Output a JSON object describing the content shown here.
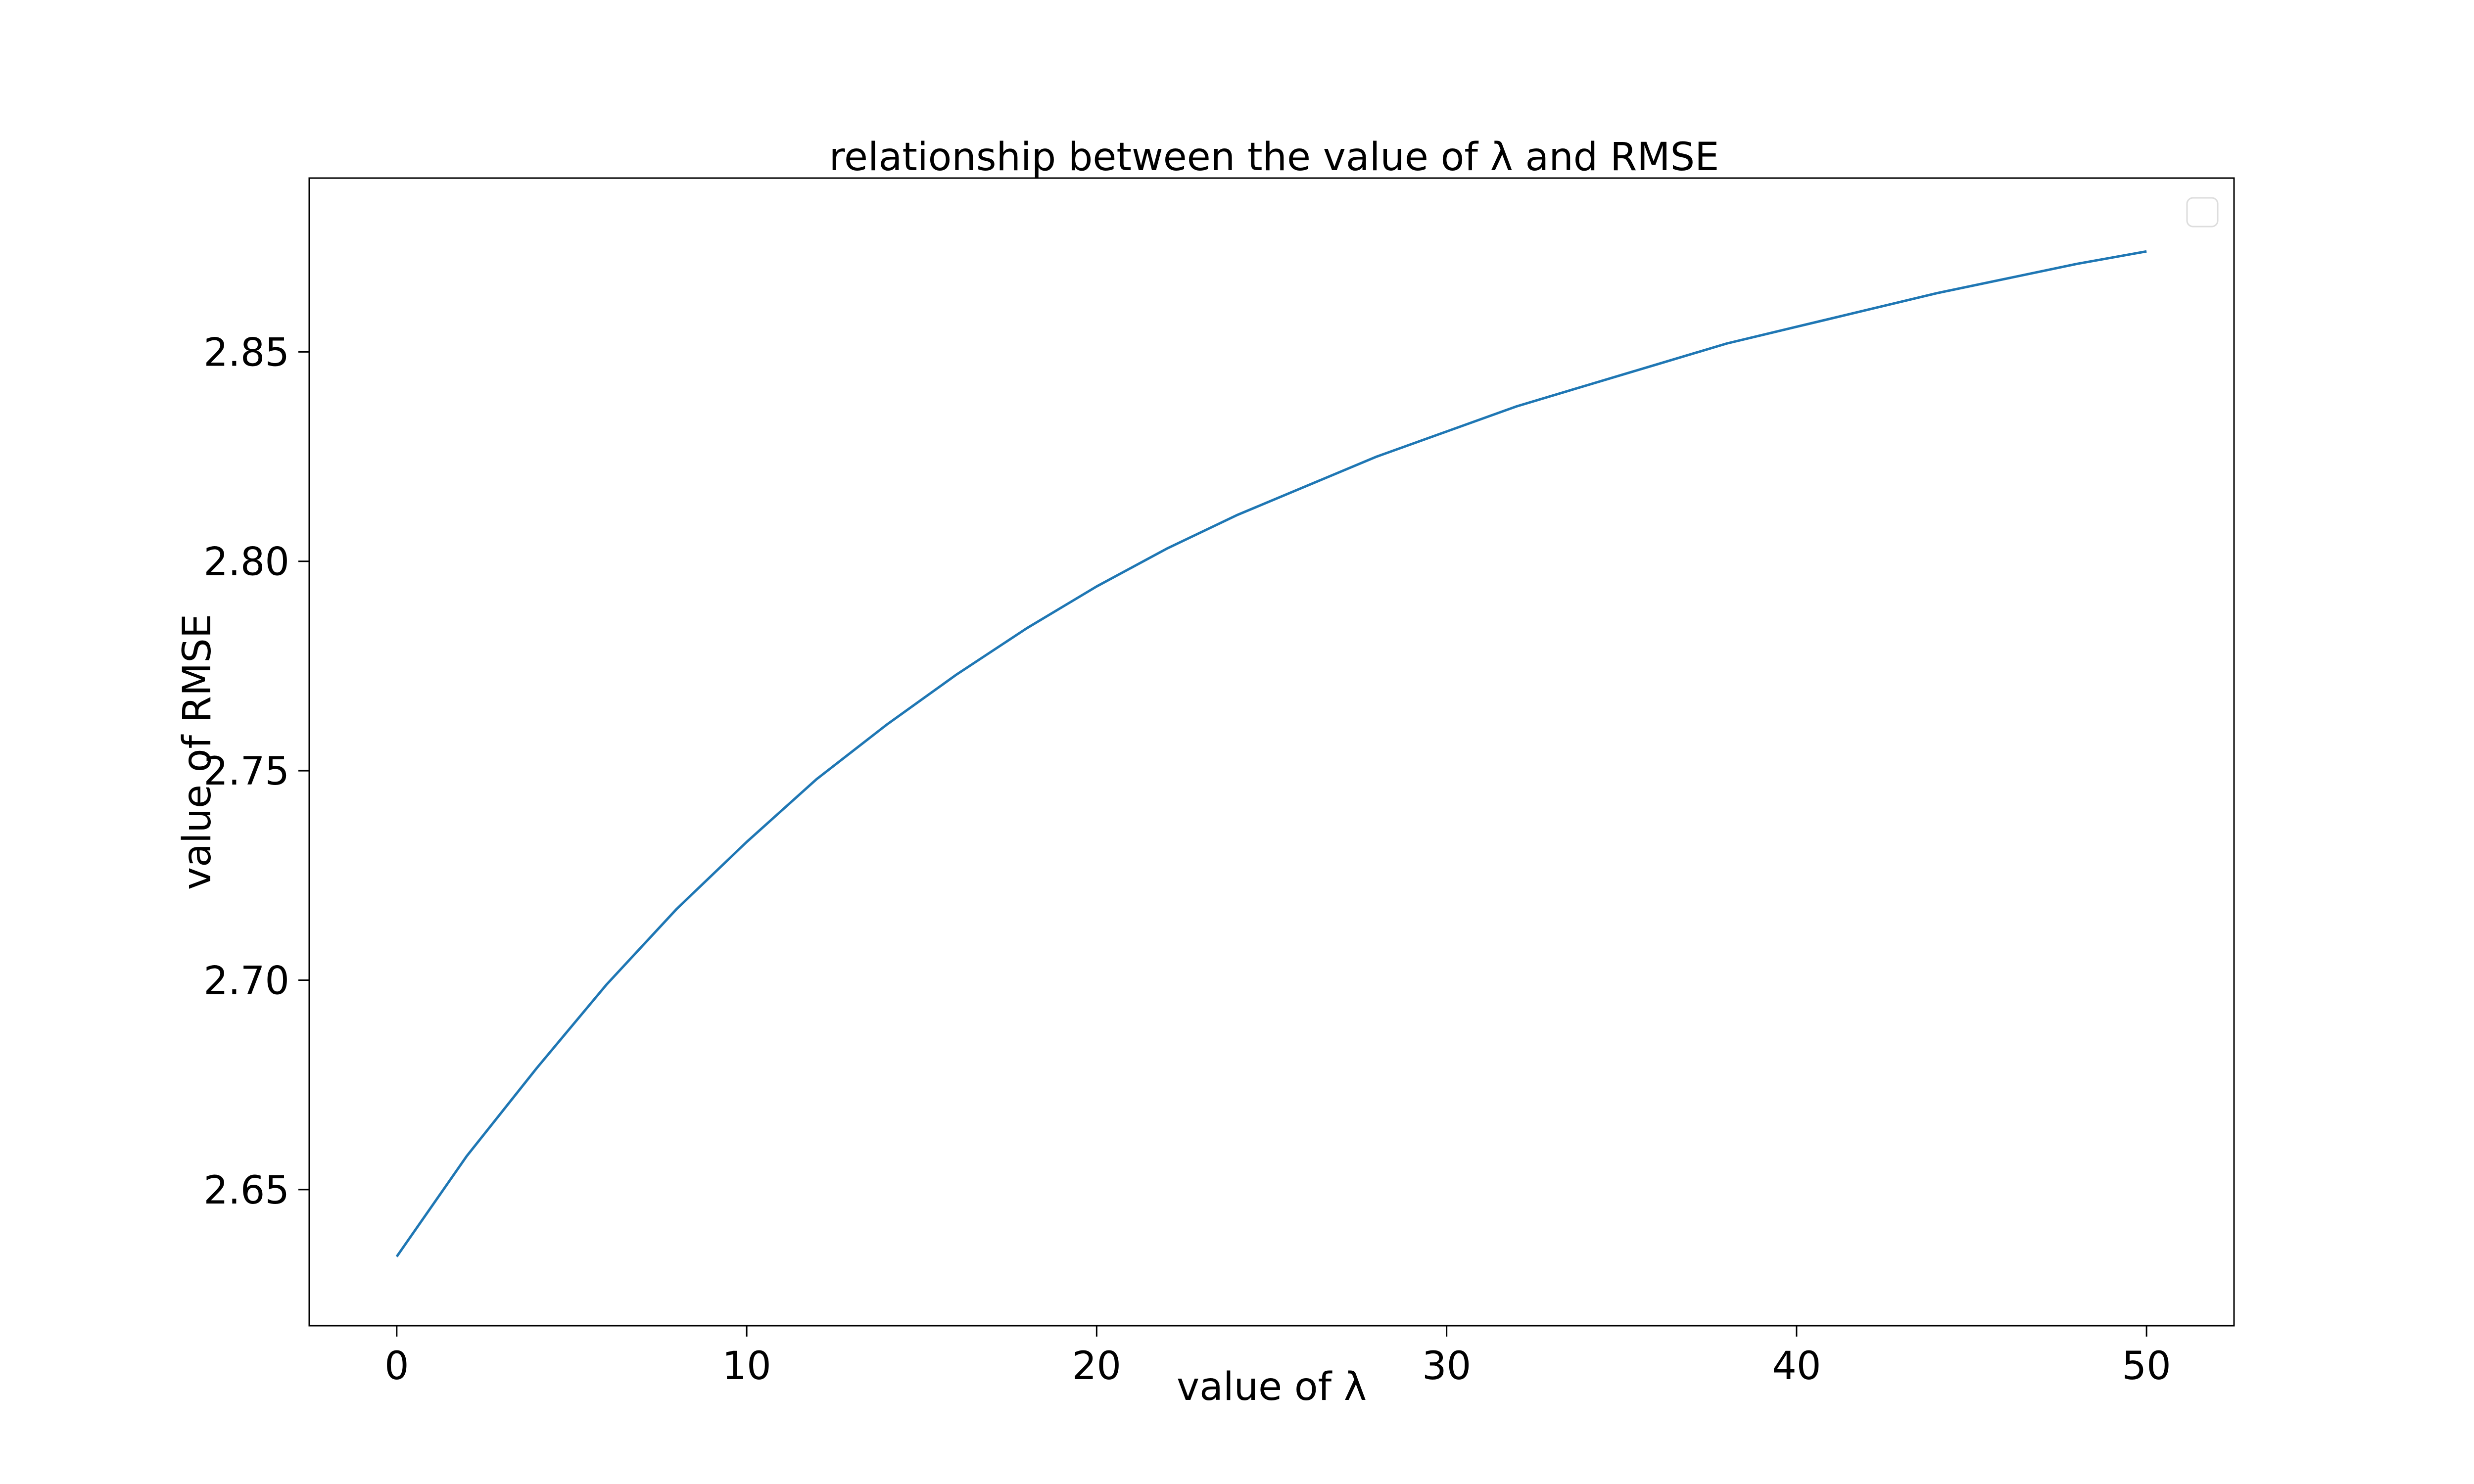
{
  "chart_data": {
    "type": "line",
    "title": "relationship between the value of λ and RMSE",
    "xlabel": "value of λ",
    "ylabel": "value of RMSE",
    "xlim": [
      -2.5,
      52.5
    ],
    "ylim": [
      2.6175,
      2.8915
    ],
    "xticks": [
      0,
      10,
      20,
      30,
      40,
      50
    ],
    "xtick_labels": [
      "0",
      "10",
      "20",
      "30",
      "40",
      "50"
    ],
    "yticks": [
      2.65,
      2.7,
      2.75,
      2.8,
      2.85
    ],
    "ytick_labels": [
      "2.65",
      "2.70",
      "2.75",
      "2.80",
      "2.85"
    ],
    "grid": false,
    "legend": "top-right",
    "legend_entries": [],
    "line_color": "#1f77b4",
    "series": [
      {
        "x": [
          0,
          2,
          4,
          6,
          8,
          10,
          12,
          14,
          16,
          18,
          20,
          22,
          24,
          26,
          28,
          30,
          32,
          34,
          36,
          38,
          40,
          42,
          44,
          46,
          48,
          50
        ],
        "values": [
          2.634,
          2.658,
          2.679,
          2.699,
          2.717,
          2.733,
          2.748,
          2.761,
          2.773,
          2.784,
          2.794,
          2.803,
          2.811,
          2.818,
          2.825,
          2.831,
          2.837,
          2.842,
          2.847,
          2.852,
          2.856,
          2.86,
          2.864,
          2.8675,
          2.871,
          2.874
        ]
      }
    ]
  }
}
